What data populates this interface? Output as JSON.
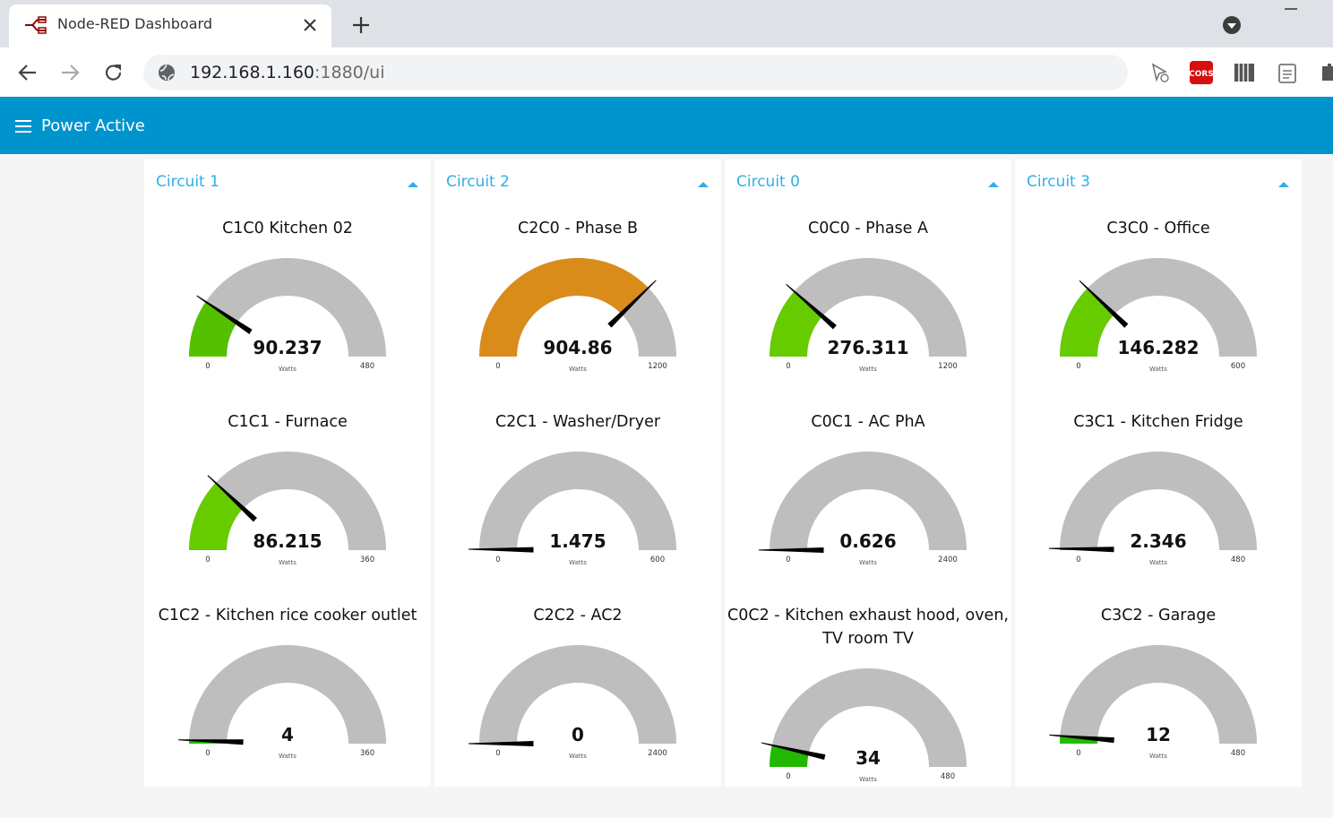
{
  "browser": {
    "tab_title": "Node-RED Dashboard",
    "url_host": "192.168.1.160",
    "url_rest": ":1880/ui",
    "cors_icon": "CORS"
  },
  "header": {
    "title": "Power Active"
  },
  "groups": [
    {
      "name": "Circuit 1",
      "gauges": [
        {
          "title": "C1C0 Kitchen 02",
          "value": 90.237,
          "min": 0,
          "max": 480,
          "units": "Watts",
          "color": "#55c000"
        },
        {
          "title": "C1C1 - Furnace",
          "value": 86.215,
          "min": 0,
          "max": 360,
          "units": "Watts",
          "color": "#66cc00"
        },
        {
          "title": "C1C2 - Kitchen rice cooker outlet",
          "value": 4,
          "min": 0,
          "max": 360,
          "units": "Watts",
          "color": "#22bb00"
        }
      ]
    },
    {
      "name": "Circuit 2",
      "gauges": [
        {
          "title": "C2C0 - Phase B",
          "value": 904.86,
          "min": 0,
          "max": 1200,
          "units": "Watts",
          "color": "#d98c1a"
        },
        {
          "title": "C2C1 - Washer/Dryer",
          "value": 1.475,
          "min": 0,
          "max": 600,
          "units": "Watts",
          "color": "#22bb00"
        },
        {
          "title": "C2C2 - AC2",
          "value": 0,
          "min": 0,
          "max": 2400,
          "units": "Watts",
          "color": "#22bb00"
        }
      ]
    },
    {
      "name": "Circuit 0",
      "gauges": [
        {
          "title": "C0C0 - Phase A",
          "value": 276.311,
          "min": 0,
          "max": 1200,
          "units": "Watts",
          "color": "#66cc00"
        },
        {
          "title": "C0C1 - AC PhA",
          "value": 0.626,
          "min": 0,
          "max": 2400,
          "units": "Watts",
          "color": "#22bb00"
        },
        {
          "title": "C0C2 - Kitchen exhaust hood, oven, TV room TV",
          "value": 34,
          "min": 0,
          "max": 480,
          "units": "Watts",
          "color": "#22b800"
        }
      ]
    },
    {
      "name": "Circuit 3",
      "gauges": [
        {
          "title": "C3C0 - Office",
          "value": 146.282,
          "min": 0,
          "max": 600,
          "units": "Watts",
          "color": "#66cc00"
        },
        {
          "title": "C3C1 - Kitchen Fridge",
          "value": 2.346,
          "min": 0,
          "max": 480,
          "units": "Watts",
          "color": "#22bb00"
        },
        {
          "title": "C3C2 - Garage",
          "value": 12,
          "min": 0,
          "max": 480,
          "units": "Watts",
          "color": "#22bb00"
        }
      ]
    }
  ]
}
